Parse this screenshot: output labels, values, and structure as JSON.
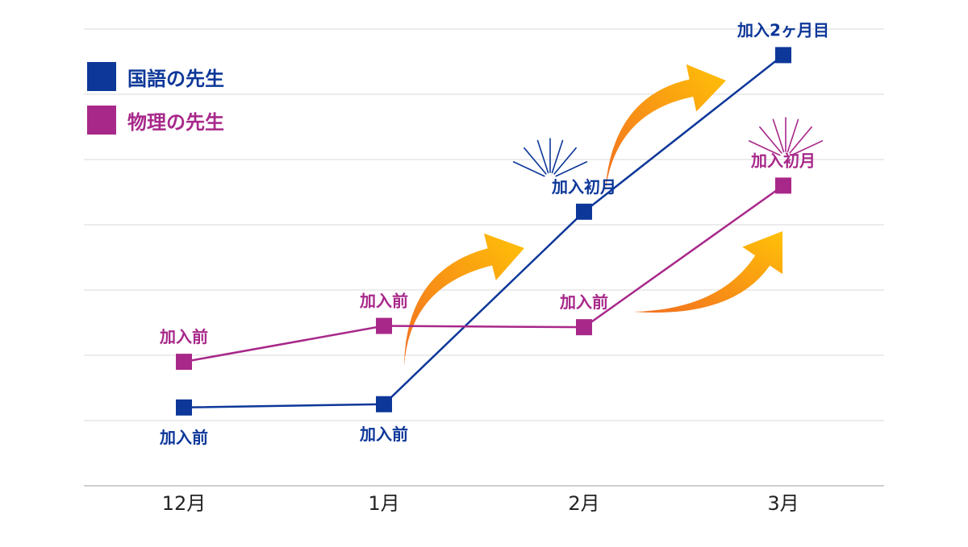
{
  "chart_data": {
    "type": "line",
    "categories": [
      "12月",
      "1月",
      "2月",
      "3月"
    ],
    "ylim": [
      0,
      7
    ],
    "grid": true,
    "legend_position": "top-left",
    "series": [
      {
        "name": "国語の先生",
        "color": "#0d3799",
        "values": [
          1.2,
          1.25,
          4.2,
          6.6
        ],
        "labels": [
          "加入前",
          "加入前",
          "加入初月",
          "加入2ヶ月目"
        ]
      },
      {
        "name": "物理の先生",
        "color": "#a8288a",
        "values": [
          1.9,
          2.45,
          2.43,
          4.6
        ],
        "labels": [
          "加入前",
          "加入前",
          "加入前",
          "加入初月"
        ]
      }
    ]
  },
  "colors": {
    "grid": "#d9d9d9",
    "axis": "#bdbdbd",
    "tick_text": "#222222",
    "arrow_start": "#f26d21",
    "arrow_end": "#ffc107"
  }
}
